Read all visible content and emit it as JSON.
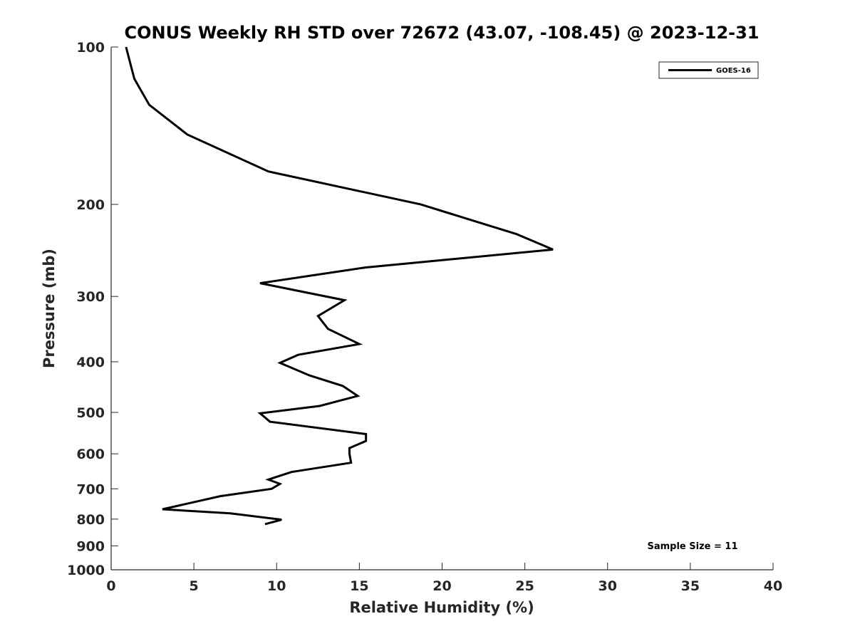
{
  "chart_data": {
    "type": "line",
    "title": "CONUS Weekly RH STD over 72672 (43.07, -108.45) @ 2023-12-31",
    "xlabel": "Relative Humidity (%)",
    "ylabel": "Pressure (mb)",
    "xlim": [
      0,
      40
    ],
    "ylim": [
      100,
      1000
    ],
    "y_scale": "log",
    "y_inverted": true,
    "grid": false,
    "x_ticks": [
      0,
      5,
      10,
      15,
      20,
      25,
      30,
      35,
      40
    ],
    "x_tick_labels": [
      "0",
      "5",
      "10",
      "15",
      "20",
      "25",
      "30",
      "35",
      "40"
    ],
    "y_ticks": [
      100,
      200,
      300,
      400,
      500,
      600,
      700,
      800,
      900,
      1000
    ],
    "y_tick_labels": [
      "100",
      "200",
      "300",
      "400",
      "500",
      "600",
      "700",
      "800",
      "900",
      "1000"
    ],
    "legend": {
      "placement": "top-right"
    },
    "series": [
      {
        "name": "GOES-16",
        "color": "#000000",
        "x": [
          0.9,
          1.4,
          2.3,
          4.6,
          9.5,
          18.7,
          24.5,
          26.7,
          15.4,
          9.0,
          14.1,
          12.5,
          13.1,
          15.0,
          11.3,
          10.2,
          12.0,
          14.0,
          14.9,
          12.6,
          9.0,
          9.6,
          15.4,
          15.4,
          14.4,
          14.4,
          14.5,
          10.9,
          9.5,
          10.2,
          9.7,
          6.6,
          3.1,
          7.2,
          10.3,
          9.3
        ],
        "y": [
          100,
          115,
          129,
          147,
          173,
          200,
          228,
          244,
          264,
          283,
          305,
          327,
          346,
          370,
          388,
          402,
          425,
          445,
          465,
          486,
          502,
          521,
          550,
          567,
          585,
          600,
          624,
          650,
          672,
          685,
          700,
          723,
          766,
          780,
          802,
          818
        ]
      }
    ],
    "annotations": [
      {
        "text": "Sample Size = 11",
        "position": "bottom-right"
      }
    ]
  }
}
